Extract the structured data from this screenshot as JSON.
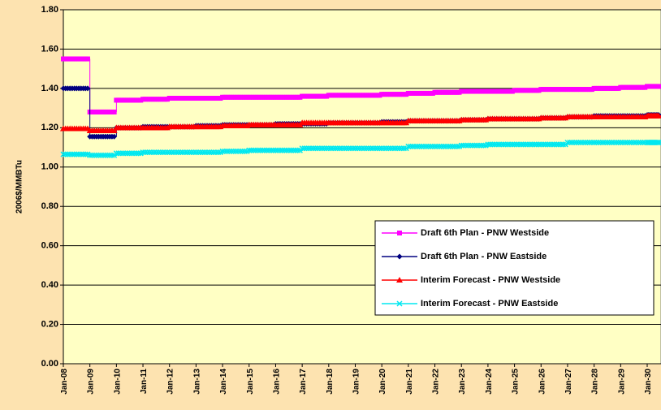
{
  "chart_data": {
    "type": "step-line",
    "ylabel": "2006$/MMBTu",
    "categories": [
      "Jan-08",
      "Jan-09",
      "Jan-10",
      "Jan-11",
      "Jan-12",
      "Jan-13",
      "Jan-14",
      "Jan-15",
      "Jan-16",
      "Jan-17",
      "Jan-18",
      "Jan-19",
      "Jan-20",
      "Jan-21",
      "Jan-22",
      "Jan-23",
      "Jan-24",
      "Jan-25",
      "Jan-26",
      "Jan-27",
      "Jan-28",
      "Jan-29",
      "Jan-30"
    ],
    "series": [
      {
        "name": "Draft 6th Plan - PNW Westside",
        "color": "#ff00ff",
        "marker": "square",
        "values": [
          1.55,
          1.28,
          1.34,
          1.345,
          1.35,
          1.35,
          1.355,
          1.355,
          1.355,
          1.36,
          1.365,
          1.365,
          1.37,
          1.375,
          1.38,
          1.385,
          1.385,
          1.39,
          1.395,
          1.395,
          1.4,
          1.405,
          1.41
        ]
      },
      {
        "name": "Draft 6th Plan - PNW Eastside",
        "color": "#000080",
        "marker": "diamond",
        "values": [
          1.4,
          1.155,
          1.2,
          1.205,
          1.205,
          1.21,
          1.215,
          1.215,
          1.22,
          1.22,
          1.225,
          1.225,
          1.23,
          1.235,
          1.235,
          1.24,
          1.245,
          1.245,
          1.25,
          1.255,
          1.26,
          1.26,
          1.265
        ]
      },
      {
        "name": "Interim Forecast - PNW Westside",
        "color": "#ff0000",
        "marker": "triangle",
        "values": [
          1.195,
          1.185,
          1.2,
          1.2,
          1.205,
          1.205,
          1.21,
          1.215,
          1.215,
          1.225,
          1.225,
          1.225,
          1.225,
          1.235,
          1.235,
          1.24,
          1.245,
          1.245,
          1.25,
          1.255,
          1.255,
          1.255,
          1.26
        ]
      },
      {
        "name": "Interim Forecast - PNW Eastside",
        "color": "#00e8f0",
        "marker": "x",
        "values": [
          1.065,
          1.06,
          1.07,
          1.075,
          1.075,
          1.075,
          1.08,
          1.085,
          1.085,
          1.095,
          1.095,
          1.095,
          1.095,
          1.105,
          1.105,
          1.11,
          1.115,
          1.115,
          1.115,
          1.125,
          1.125,
          1.125,
          1.125
        ]
      }
    ],
    "ylim": [
      0,
      1.8
    ],
    "yticks": [
      {
        "value": 0,
        "label": "0.00"
      },
      {
        "value": 0.2,
        "label": "0.20"
      },
      {
        "value": 0.4,
        "label": "0.40"
      },
      {
        "value": 0.6,
        "label": "0.60"
      },
      {
        "value": 0.8,
        "label": "0.80"
      },
      {
        "value": 1,
        "label": "1.00"
      },
      {
        "value": 1.2,
        "label": "1.20"
      },
      {
        "value": 1.4,
        "label": "1.40"
      },
      {
        "value": 1.6,
        "label": "1.60"
      },
      {
        "value": 1.8,
        "label": "1.80"
      }
    ],
    "grid": true,
    "legend": "lower-right"
  }
}
